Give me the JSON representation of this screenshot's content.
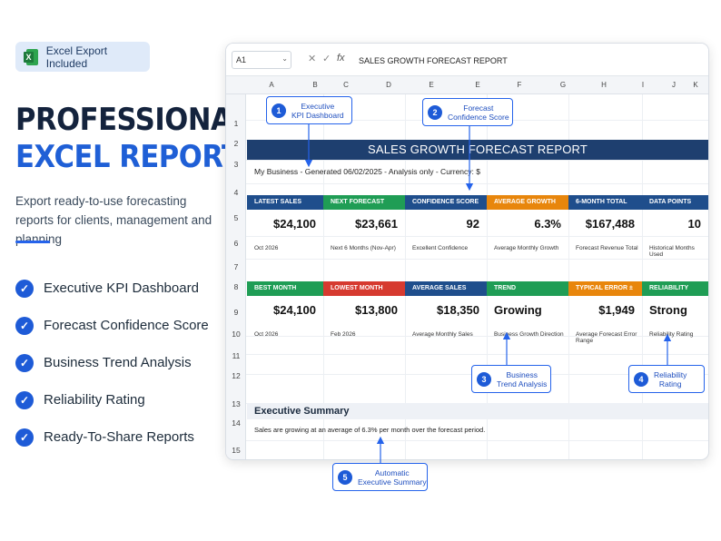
{
  "badge": {
    "label": "Excel Export Included",
    "icon": "excel-icon"
  },
  "hero": {
    "line1": "PROFESSIONAL",
    "line2": "EXCEL REPORTS"
  },
  "subtitle": "Export ready-to-use forecasting reports for clients, management and planning",
  "features": [
    "Executive KPI Dashboard",
    "Forecast Confidence Score",
    "Business Trend Analysis",
    "Reliability Rating",
    "Ready-To-Share Reports"
  ],
  "sheet": {
    "cell_ref": "A1",
    "formula": "SALES GROWTH FORECAST REPORT",
    "columns": [
      "A",
      "B",
      "C",
      "D",
      "E",
      "E",
      "F",
      "G",
      "H",
      "I",
      "J",
      "K"
    ],
    "rows": [
      "1",
      "2",
      "3",
      "4",
      "5",
      "6",
      "7",
      "8",
      "9",
      "10",
      "11",
      "12",
      "13",
      "14",
      "15"
    ],
    "title": "SALES GROWTH FORECAST REPORT",
    "meta": "My Business - Generated 06/02/2025 - Analysis only - Currency: $",
    "kpi_row1": [
      {
        "head": "LATEST SALES",
        "value": "$24,100",
        "sub": "Oct 2026",
        "color": "#1f4e8c"
      },
      {
        "head": "NEXT FORECAST",
        "value": "$23,661",
        "sub": "Next 6 Months (Nov-Apr)",
        "color": "#1f9d55"
      },
      {
        "head": "CONFIDENCE SCORE",
        "value": "92",
        "sub": "Excellent Confidence",
        "color": "#1f4e8c"
      },
      {
        "head": "AVERAGE GROWTH",
        "value": "6.3%",
        "sub": "Average Monthly Growth",
        "color": "#e8860c"
      },
      {
        "head": "6-MONTH TOTAL",
        "value": "$167,488",
        "sub": "Forecast Revenue Total",
        "color": "#1f4e8c"
      },
      {
        "head": "DATA POINTS",
        "value": "10",
        "sub": "Historical Months Used",
        "color": "#1f4e8c"
      }
    ],
    "kpi_row2": [
      {
        "head": "BEST MONTH",
        "value": "$24,100",
        "sub": "Oct 2026",
        "color": "#1f9d55"
      },
      {
        "head": "LOWEST MONTH",
        "value": "$13,800",
        "sub": "Feb 2026",
        "color": "#d63a2f"
      },
      {
        "head": "AVERAGE SALES",
        "value": "$18,350",
        "sub": "Average Monthly Sales",
        "color": "#1f4e8c"
      },
      {
        "head": "TREND",
        "value": "Growing",
        "sub": "Business Growth Direction",
        "color": "#1f9d55"
      },
      {
        "head": "TYPICAL ERROR ±",
        "value": "$1,949",
        "sub": "Average Forecast Error Range",
        "color": "#e8860c"
      },
      {
        "head": "RELIABILITY",
        "value": "Strong",
        "sub": "Reliability Rating",
        "color": "#1f9d55"
      }
    ],
    "summary_title": "Executive Summary",
    "summary_text": "Sales are growing at an average of 6.3% per month over the forecast period."
  },
  "callouts": [
    {
      "num": "1",
      "line1": "Executive",
      "line2": "KPI Dashboard"
    },
    {
      "num": "2",
      "line1": "Forecast",
      "line2": "Confidence Score"
    },
    {
      "num": "3",
      "line1": "Business",
      "line2": "Trend Analysis"
    },
    {
      "num": "4",
      "line1": "Reliability",
      "line2": "Rating"
    },
    {
      "num": "5",
      "line1": "Automatic",
      "line2": "Executive Summary"
    }
  ]
}
